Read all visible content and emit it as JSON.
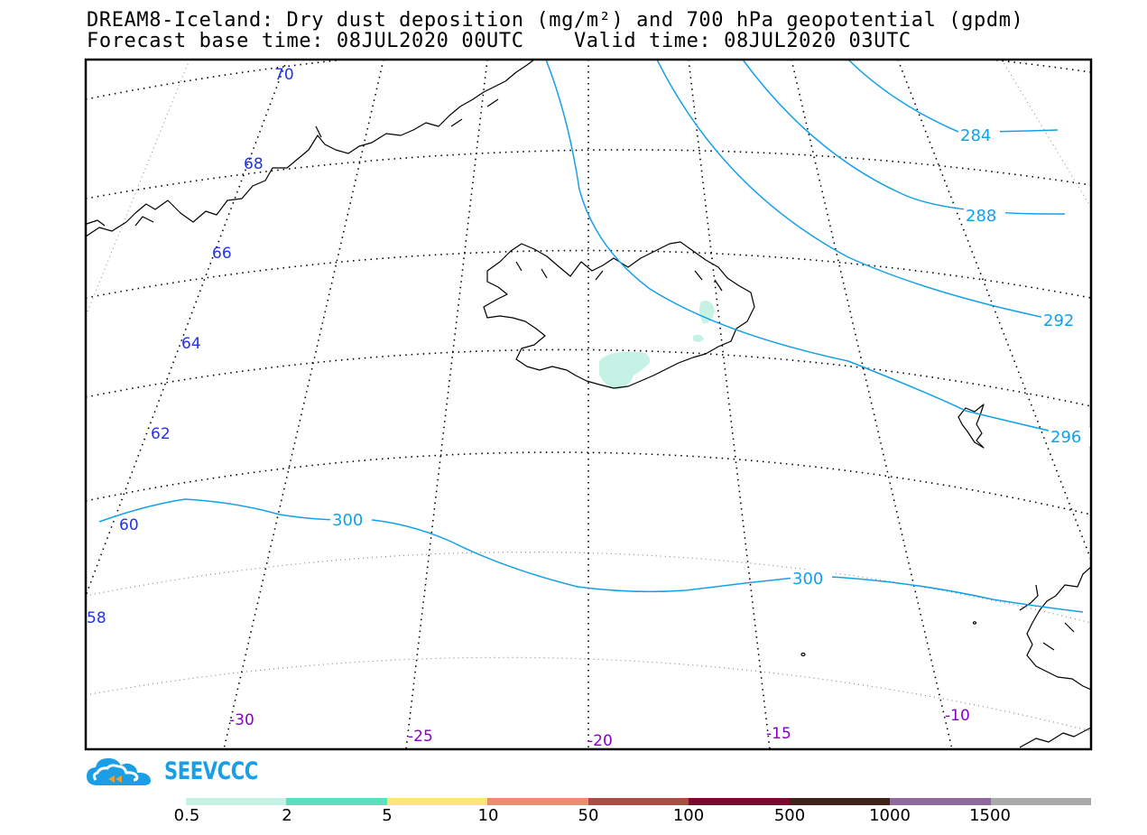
{
  "title": {
    "line1": "DREAM8-Iceland: Dry dust deposition (mg/m²) and 700 hPa geopotential (gpdm)",
    "line2": "Forecast base time: 08JUL2020 00UTC    Valid time: 08JUL2020 03UTC"
  },
  "latitude_labels": [
    "70",
    "68",
    "66",
    "64",
    "62",
    "60",
    "58"
  ],
  "longitude_labels": [
    "-30",
    "-25",
    "-20",
    "-15",
    "-10"
  ],
  "contour_labels": [
    "284",
    "288",
    "292",
    "296",
    "300",
    "300"
  ],
  "logo": {
    "text": "SEEVCCC",
    "icon": "cloud-logo-icon"
  },
  "colorbar": {
    "labels": [
      "0.5",
      "2",
      "5",
      "10",
      "50",
      "100",
      "500",
      "1000",
      "1500"
    ],
    "colors": [
      "#c6f2e6",
      "#5ee0bf",
      "#fde57c",
      "#ec8c6e",
      "#a84e45",
      "#7c0a2e",
      "#3e2418",
      "#8e6a9c",
      "#a9a9a9"
    ]
  },
  "colors": {
    "contour": "#14a0e8",
    "latitude": "#2233ee",
    "longitude": "#8800cc",
    "dust": "#c6f2e6"
  }
}
